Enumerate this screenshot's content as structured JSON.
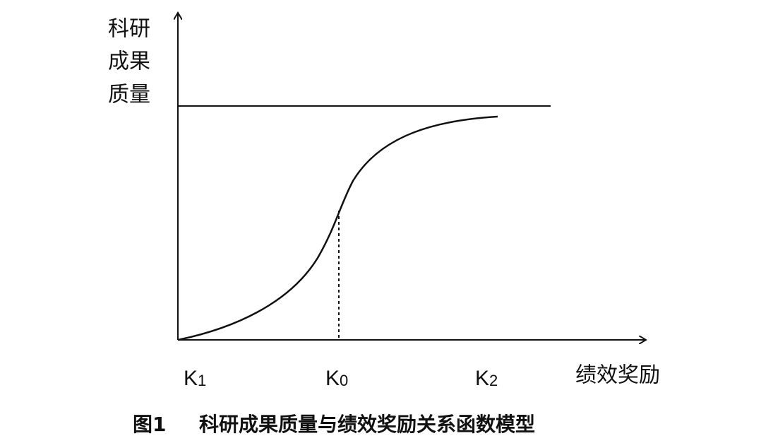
{
  "y_axis": {
    "label_lines": [
      "科研",
      "成果",
      "质量"
    ]
  },
  "x_axis": {
    "label": "绩效奖励",
    "points": [
      {
        "main": "K",
        "sub": "1"
      },
      {
        "main": "K",
        "sub": "0"
      },
      {
        "main": "K",
        "sub": "2"
      }
    ]
  },
  "caption": {
    "number": "图1",
    "text": "科研成果质量与绩效奖励关系函数模型"
  }
}
